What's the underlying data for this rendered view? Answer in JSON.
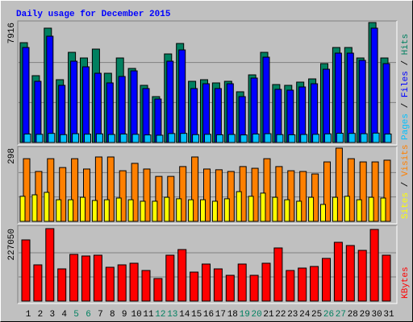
{
  "title": "Daily usage for December 2015",
  "legend_separator": " / ",
  "chart_data": [
    {
      "type": "bar",
      "ylim": [
        0,
        7916
      ],
      "yticks": [
        7916
      ],
      "series": [
        {
          "name": "Hits",
          "color": "#008060",
          "values": [
            6588,
            4410,
            7545,
            4144,
            5950,
            5578,
            6163,
            4569,
            5578,
            4888,
            3772,
            3028,
            5844,
            6535,
            4038,
            4144,
            3932,
            4038,
            3347,
            4463,
            5950,
            3825,
            3772,
            3985,
            4197,
            5206,
            6269,
            6269,
            5578,
            7916,
            5578
          ]
        },
        {
          "name": "Files",
          "color": "#0000ff",
          "values": [
            6269,
            4038,
            7014,
            3772,
            5366,
            4994,
            4569,
            3932,
            4357,
            4728,
            3560,
            2869,
            5366,
            6109,
            3560,
            3878,
            3560,
            3878,
            3028,
            4251,
            5631,
            3507,
            3453,
            3666,
            3878,
            4835,
            5897,
            5897,
            5419,
            7545,
            5206
          ]
        },
        {
          "name": "Pages",
          "color": "#00c0ff",
          "values": [
            560,
            540,
            600,
            520,
            580,
            550,
            570,
            530,
            560,
            540,
            500,
            480,
            590,
            600,
            520,
            540,
            510,
            530,
            500,
            560,
            580,
            520,
            510,
            530,
            540,
            570,
            610,
            600,
            580,
            620,
            560
          ]
        }
      ]
    },
    {
      "type": "bar",
      "ylim": [
        0,
        298
      ],
      "yticks": [
        298
      ],
      "series": [
        {
          "name": "Visits",
          "color": "#ff8000",
          "values": [
            255,
            203,
            255,
            219,
            255,
            213,
            262,
            262,
            206,
            236,
            213,
            183,
            183,
            223,
            262,
            213,
            210,
            203,
            223,
            216,
            255,
            223,
            206,
            203,
            193,
            242,
            298,
            255,
            242,
            242,
            249
          ]
        },
        {
          "name": "Sites",
          "color": "#ffff00",
          "values": [
            102,
            108,
            118,
            88,
            88,
            98,
            85,
            88,
            95,
            88,
            82,
            82,
            98,
            92,
            88,
            88,
            82,
            92,
            121,
            102,
            115,
            98,
            88,
            82,
            98,
            69,
            98,
            102,
            88,
            98,
            95
          ]
        }
      ]
    },
    {
      "type": "bar",
      "ylim": [
        0,
        227050
      ],
      "yticks": [
        227050
      ],
      "categories": [
        "1",
        "2",
        "3",
        "4",
        "5",
        "6",
        "7",
        "8",
        "9",
        "10",
        "11",
        "12",
        "13",
        "14",
        "15",
        "16",
        "17",
        "18",
        "19",
        "20",
        "21",
        "22",
        "23",
        "24",
        "25",
        "26",
        "27",
        "28",
        "29",
        "30",
        "31"
      ],
      "category_colors": [
        "#000000",
        "#000000",
        "#000000",
        "#000000",
        "#008060",
        "#008060",
        "#000000",
        "#000000",
        "#000000",
        "#000000",
        "#000000",
        "#008060",
        "#008060",
        "#000000",
        "#000000",
        "#000000",
        "#000000",
        "#000000",
        "#008060",
        "#008060",
        "#000000",
        "#000000",
        "#000000",
        "#000000",
        "#000000",
        "#008060",
        "#008060",
        "#000000",
        "#000000",
        "#000000",
        "#000000"
      ],
      "series": [
        {
          "name": "KBytes",
          "color": "#ff0000",
          "values": [
            191748,
            113535,
            227050,
            100920,
            146334,
            141288,
            143811,
            105966,
            113535,
            118581,
            95874,
            70644,
            143811,
            161472,
            90828,
            116058,
            100920,
            80736,
            116058,
            80736,
            118581,
            166518,
            95874,
            103443,
            108489,
            133719,
            184179,
            174087,
            158949,
            224527,
            143811
          ]
        }
      ]
    }
  ]
}
